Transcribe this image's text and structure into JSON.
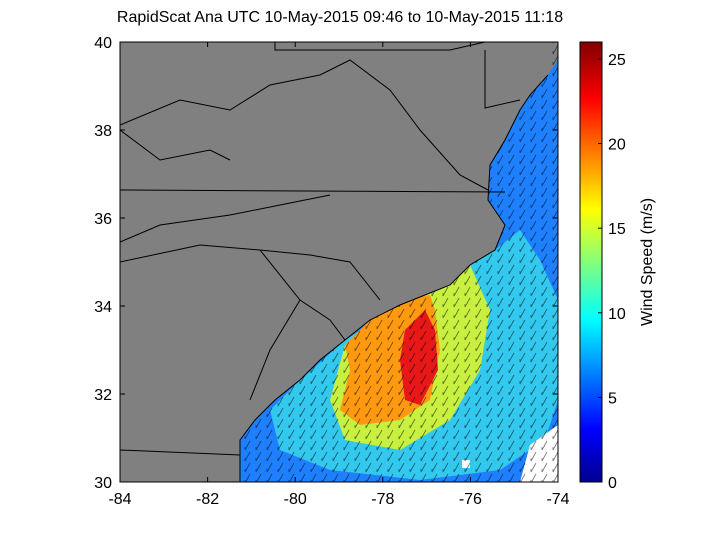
{
  "map": {
    "title": "RapidScat Ana UTC 10-May-2015 09:46 to 10-May-2015 11:18",
    "xlim": [
      -84,
      -74
    ],
    "xticks": [
      -84,
      -82,
      -80,
      -78,
      -76,
      -74
    ],
    "ylim": [
      30,
      40
    ],
    "yticks": [
      30,
      32,
      34,
      36,
      38,
      40
    ],
    "colorbar": {
      "label": "Wind Speed (m/s)",
      "lim": [
        0,
        26
      ],
      "ticks": [
        0,
        5,
        10,
        15,
        20,
        25
      ]
    }
  }
}
